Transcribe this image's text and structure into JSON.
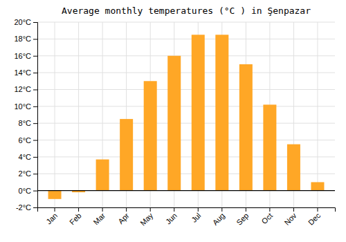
{
  "chart_data": {
    "type": "bar",
    "title": "Average monthly temperatures (°C ) in Şenpazar",
    "categories": [
      "Jan",
      "Feb",
      "Mar",
      "Apr",
      "May",
      "Jun",
      "Jul",
      "Aug",
      "Sep",
      "Oct",
      "Nov",
      "Dec"
    ],
    "values": [
      -1.0,
      -0.2,
      3.7,
      8.5,
      13.0,
      16.0,
      18.5,
      18.5,
      15.0,
      10.2,
      5.5,
      1.0
    ],
    "color": "#FFA726",
    "ylim": [
      -2,
      20
    ],
    "yticks": [
      {
        "value": -2,
        "label": "-2°C"
      },
      {
        "value": 0,
        "label": "0°C"
      },
      {
        "value": 2,
        "label": "2°C"
      },
      {
        "value": 4,
        "label": "4°C"
      },
      {
        "value": 6,
        "label": "6°C"
      },
      {
        "value": 8,
        "label": "8°C"
      },
      {
        "value": 10,
        "label": "10°C"
      },
      {
        "value": 12,
        "label": "12°C"
      },
      {
        "value": 14,
        "label": "14°C"
      },
      {
        "value": 16,
        "label": "16°C"
      },
      {
        "value": 18,
        "label": "18°C"
      },
      {
        "value": 20,
        "label": "20°C"
      }
    ],
    "grid": true
  }
}
